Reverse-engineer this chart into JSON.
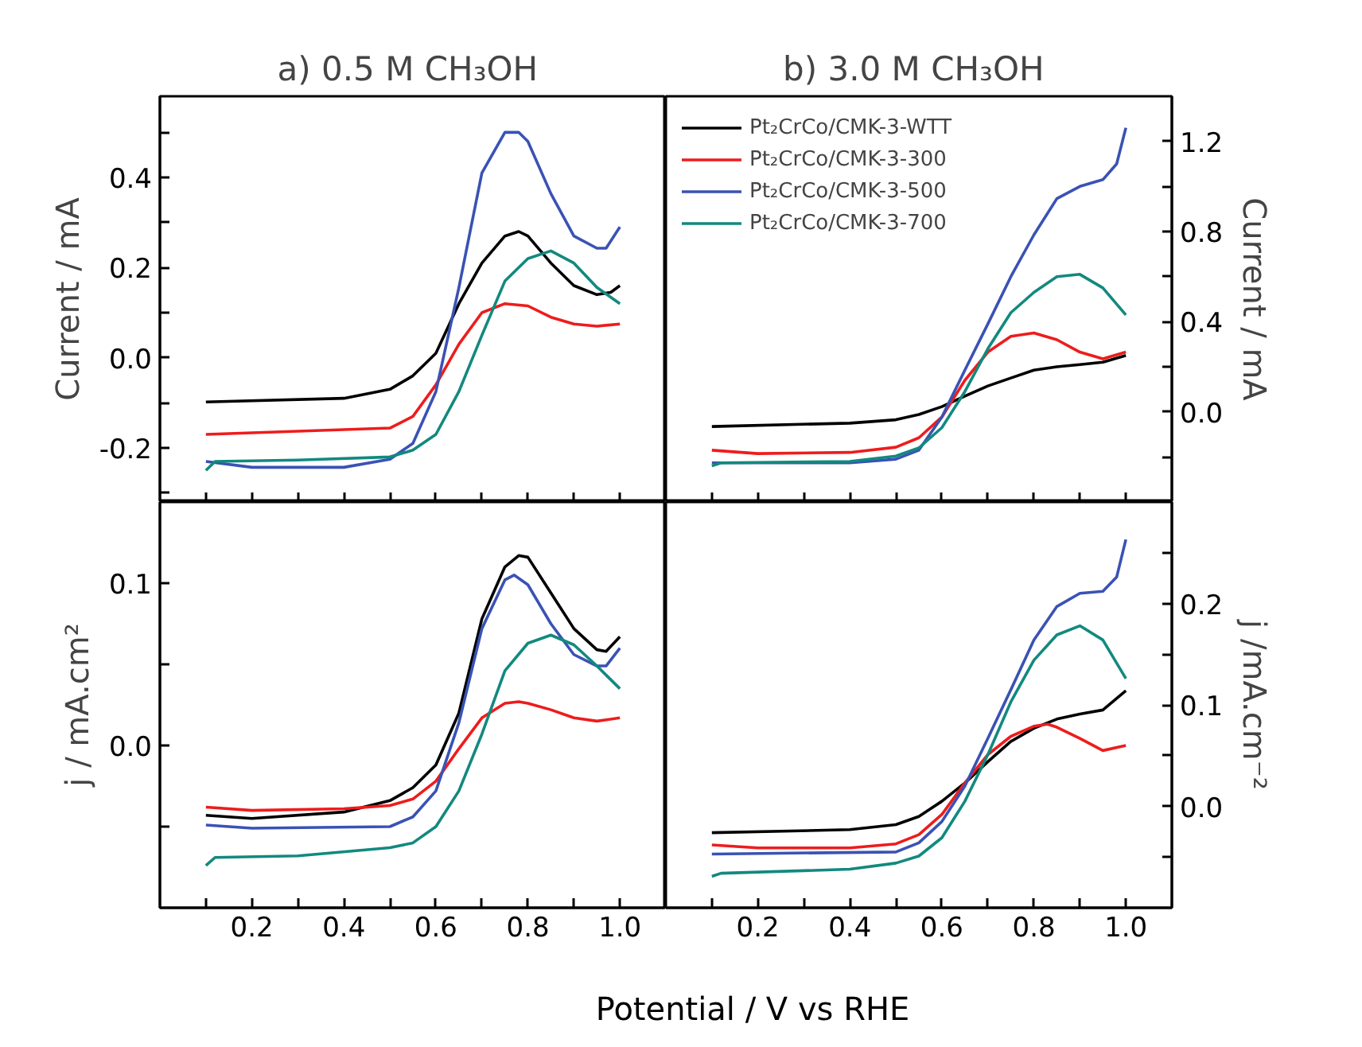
{
  "chart_data": [
    {
      "type": "line",
      "title": "a)  0.5 M CH₃OH",
      "ylabel": "Current / mA",
      "tick_labels": "y",
      "grid": false,
      "xlim": [
        0,
        1.1
      ],
      "xticks": [
        {
          "value": 0.1,
          "label": null
        },
        {
          "value": 0.2,
          "label": null
        },
        {
          "value": 0.3,
          "label": null
        },
        {
          "value": 0.4,
          "label": null
        },
        {
          "value": 0.5,
          "label": null
        },
        {
          "value": 0.6,
          "label": null
        },
        {
          "value": 0.7,
          "label": null
        },
        {
          "value": 0.8,
          "label": null
        },
        {
          "value": 0.9,
          "label": null
        },
        {
          "value": 1.0,
          "label": null
        }
      ],
      "ylim": [
        -0.32,
        0.58
      ],
      "yticks": [
        {
          "value": -0.3,
          "label": null
        },
        -0.2,
        {
          "value": -0.1,
          "label": null
        },
        {
          "value": 0,
          "label": "0.0"
        },
        {
          "value": 0.1,
          "label": null
        },
        0.2,
        {
          "value": 0.3,
          "label": null
        },
        0.4,
        {
          "value": 0.5,
          "label": null
        }
      ],
      "series": [
        {
          "color": "#000000",
          "x": [
            0.1,
            0.4,
            0.5,
            0.55,
            0.6,
            0.65,
            0.7,
            0.75,
            0.78,
            0.8,
            0.85,
            0.9,
            0.95,
            0.98,
            1.0
          ],
          "values": [
            -0.098,
            -0.09,
            -0.07,
            -0.04,
            0.01,
            0.12,
            0.21,
            0.27,
            0.28,
            0.27,
            0.21,
            0.16,
            0.14,
            0.145,
            0.16
          ]
        },
        {
          "color": "#ee1c1c",
          "x": [
            0.1,
            0.5,
            0.55,
            0.6,
            0.65,
            0.7,
            0.75,
            0.8,
            0.85,
            0.9,
            0.95,
            1.0
          ],
          "values": [
            -0.17,
            -0.156,
            -0.13,
            -0.06,
            0.03,
            0.1,
            0.12,
            0.115,
            0.09,
            0.075,
            0.07,
            0.075
          ]
        },
        {
          "color": "#3a52b4",
          "x": [
            0.1,
            0.2,
            0.4,
            0.5,
            0.55,
            0.6,
            0.65,
            0.7,
            0.75,
            0.78,
            0.8,
            0.85,
            0.9,
            0.95,
            0.97,
            1.0
          ],
          "values": [
            -0.23,
            -0.243,
            -0.243,
            -0.225,
            -0.19,
            -0.075,
            0.156,
            0.41,
            0.5,
            0.5,
            0.48,
            0.364,
            0.27,
            0.243,
            0.243,
            0.29
          ]
        },
        {
          "color": "#12897f",
          "x": [
            0.1,
            0.12,
            0.3,
            0.5,
            0.55,
            0.6,
            0.65,
            0.7,
            0.75,
            0.8,
            0.85,
            0.9,
            0.95,
            1.0
          ],
          "values": [
            -0.25,
            -0.23,
            -0.227,
            -0.22,
            -0.205,
            -0.17,
            -0.075,
            0.05,
            0.17,
            0.22,
            0.237,
            0.21,
            0.156,
            0.12
          ]
        }
      ]
    },
    {
      "type": "line",
      "title": "b)  3.0 M CH₃OH",
      "y2label": "Current / mA",
      "tick_labels": "y",
      "grid": false,
      "legend": "top left",
      "xlim": [
        0,
        1.1
      ],
      "xticks": [
        {
          "value": 0.1,
          "label": null
        },
        {
          "value": 0.2,
          "label": null
        },
        {
          "value": 0.3,
          "label": null
        },
        {
          "value": 0.4,
          "label": null
        },
        {
          "value": 0.5,
          "label": null
        },
        {
          "value": 0.6,
          "label": null
        },
        {
          "value": 0.7,
          "label": null
        },
        {
          "value": 0.8,
          "label": null
        },
        {
          "value": 0.9,
          "label": null
        },
        {
          "value": 1.0,
          "label": null
        }
      ],
      "y2lim": [
        -0.4,
        1.4
      ],
      "y2ticks": [
        {
          "value": -0.2,
          "label": null
        },
        {
          "value": 0,
          "label": "0.0"
        },
        {
          "value": 0.2,
          "label": null
        },
        0.4,
        {
          "value": 0.6,
          "label": null
        },
        0.8,
        {
          "value": 1.0,
          "label": null
        },
        1.2
      ],
      "series": [
        {
          "name": "Pt₂CrCo/CMK-3-WTT",
          "axis": "y2",
          "color": "#000000",
          "x": [
            0.1,
            0.4,
            0.5,
            0.55,
            0.6,
            0.65,
            0.7,
            0.75,
            0.8,
            0.85,
            0.9,
            0.95,
            1.0
          ],
          "values": [
            -0.065,
            -0.05,
            -0.035,
            -0.012,
            0.023,
            0.07,
            0.115,
            0.15,
            0.185,
            0.2,
            0.21,
            0.22,
            0.25
          ]
        },
        {
          "name": "Pt₂CrCo/CMK-3-300",
          "axis": "y2",
          "color": "#ee1c1c",
          "x": [
            0.1,
            0.2,
            0.4,
            0.5,
            0.55,
            0.6,
            0.65,
            0.7,
            0.75,
            0.8,
            0.85,
            0.9,
            0.95,
            1.0
          ],
          "values": [
            -0.17,
            -0.185,
            -0.18,
            -0.157,
            -0.115,
            -0.023,
            0.14,
            0.265,
            0.335,
            0.35,
            0.32,
            0.265,
            0.235,
            0.265
          ]
        },
        {
          "name": "Pt₂CrCo/CMK-3-500",
          "axis": "y2",
          "color": "#3a52b4",
          "x": [
            0.1,
            0.4,
            0.5,
            0.55,
            0.6,
            0.65,
            0.7,
            0.75,
            0.8,
            0.85,
            0.9,
            0.95,
            0.98,
            1.0
          ],
          "values": [
            -0.226,
            -0.226,
            -0.21,
            -0.17,
            -0.023,
            0.185,
            0.39,
            0.6,
            0.785,
            0.946,
            1.0,
            1.03,
            1.1,
            1.26
          ]
        },
        {
          "name": "Pt₂CrCo/CMK-3-700",
          "axis": "y2",
          "color": "#12897f",
          "x": [
            0.1,
            0.12,
            0.4,
            0.5,
            0.55,
            0.6,
            0.65,
            0.7,
            0.75,
            0.8,
            0.85,
            0.9,
            0.95,
            1.0
          ],
          "values": [
            -0.24,
            -0.226,
            -0.22,
            -0.196,
            -0.16,
            -0.07,
            0.09,
            0.28,
            0.44,
            0.53,
            0.6,
            0.61,
            0.55,
            0.43
          ]
        }
      ]
    },
    {
      "type": "line",
      "ylabel": "j / mA.cm²",
      "xlabel": "Potential / V vs RHE",
      "grid": false,
      "xlim": [
        0,
        1.1
      ],
      "xticks": [
        {
          "value": 0.1,
          "label": null
        },
        0.2,
        {
          "value": 0.3,
          "label": null
        },
        0.4,
        {
          "value": 0.5,
          "label": null
        },
        0.6,
        {
          "value": 0.7,
          "label": null
        },
        0.8,
        {
          "value": 0.9,
          "label": null
        },
        {
          "value": 1,
          "label": "1.0"
        }
      ],
      "ylim": [
        -0.1,
        0.15
      ],
      "yticks": [
        {
          "value": -0.05,
          "label": null
        },
        {
          "value": 0,
          "label": "0.0"
        },
        {
          "value": 0.05,
          "label": null
        },
        0.1
      ],
      "series": [
        {
          "color": "#000000",
          "x": [
            0.1,
            0.2,
            0.4,
            0.5,
            0.55,
            0.6,
            0.65,
            0.7,
            0.75,
            0.78,
            0.8,
            0.85,
            0.9,
            0.95,
            0.97,
            1.0
          ],
          "values": [
            -0.043,
            -0.045,
            -0.041,
            -0.034,
            -0.026,
            -0.012,
            0.02,
            0.078,
            0.11,
            0.117,
            0.116,
            0.094,
            0.072,
            0.059,
            0.058,
            0.067
          ]
        },
        {
          "color": "#ee1c1c",
          "x": [
            0.1,
            0.2,
            0.4,
            0.5,
            0.55,
            0.6,
            0.65,
            0.7,
            0.75,
            0.78,
            0.8,
            0.85,
            0.9,
            0.95,
            1.0
          ],
          "values": [
            -0.038,
            -0.04,
            -0.039,
            -0.037,
            -0.033,
            -0.022,
            -0.002,
            0.017,
            0.026,
            0.027,
            0.026,
            0.022,
            0.017,
            0.015,
            0.017
          ]
        },
        {
          "color": "#3a52b4",
          "x": [
            0.1,
            0.2,
            0.5,
            0.55,
            0.6,
            0.65,
            0.7,
            0.75,
            0.77,
            0.8,
            0.85,
            0.9,
            0.95,
            0.97,
            1.0
          ],
          "values": [
            -0.049,
            -0.051,
            -0.05,
            -0.044,
            -0.028,
            0.014,
            0.072,
            0.102,
            0.105,
            0.099,
            0.075,
            0.056,
            0.049,
            0.049,
            0.06
          ]
        },
        {
          "color": "#12897f",
          "x": [
            0.1,
            0.12,
            0.3,
            0.5,
            0.55,
            0.6,
            0.65,
            0.7,
            0.75,
            0.8,
            0.85,
            0.9,
            0.95,
            1.0
          ],
          "values": [
            -0.074,
            -0.069,
            -0.068,
            -0.063,
            -0.06,
            -0.05,
            -0.028,
            0.007,
            0.046,
            0.063,
            0.068,
            0.062,
            0.049,
            0.035
          ]
        }
      ]
    },
    {
      "type": "line",
      "y2label": "j /mA.cm⁻²",
      "grid": false,
      "xlim": [
        0,
        1.1
      ],
      "xticks": [
        {
          "value": 0.1,
          "label": null
        },
        0.2,
        {
          "value": 0.3,
          "label": null
        },
        0.4,
        {
          "value": 0.5,
          "label": null
        },
        0.6,
        {
          "value": 0.7,
          "label": null
        },
        0.8,
        {
          "value": 0.9,
          "label": null
        },
        {
          "value": 1,
          "label": "1.0"
        }
      ],
      "y2lim": [
        -0.1,
        0.3
      ],
      "y2ticks": [
        {
          "value": -0.05,
          "label": null
        },
        {
          "value": 0,
          "label": "0.0"
        },
        {
          "value": 0.05,
          "label": null
        },
        0.1,
        {
          "value": 0.15,
          "label": null
        },
        0.2,
        {
          "value": 0.25,
          "label": null
        }
      ],
      "series": [
        {
          "axis": "y2",
          "color": "#000000",
          "x": [
            0.1,
            0.4,
            0.5,
            0.55,
            0.6,
            0.65,
            0.7,
            0.75,
            0.8,
            0.85,
            0.9,
            0.95,
            1.0
          ],
          "values": [
            -0.026,
            -0.023,
            -0.018,
            -0.01,
            0.005,
            0.023,
            0.044,
            0.064,
            0.077,
            0.086,
            0.091,
            0.095,
            0.114
          ]
        },
        {
          "axis": "y2",
          "color": "#ee1c1c",
          "x": [
            0.1,
            0.2,
            0.4,
            0.5,
            0.55,
            0.6,
            0.65,
            0.7,
            0.75,
            0.8,
            0.83,
            0.85,
            0.9,
            0.95,
            1.0
          ],
          "values": [
            -0.038,
            -0.041,
            -0.041,
            -0.037,
            -0.028,
            -0.008,
            0.023,
            0.051,
            0.069,
            0.079,
            0.081,
            0.078,
            0.067,
            0.055,
            0.06
          ]
        },
        {
          "axis": "y2",
          "color": "#3a52b4",
          "x": [
            0.1,
            0.5,
            0.55,
            0.6,
            0.65,
            0.7,
            0.75,
            0.8,
            0.85,
            0.9,
            0.95,
            0.98,
            1.0
          ],
          "values": [
            -0.047,
            -0.045,
            -0.036,
            -0.015,
            0.02,
            0.067,
            0.115,
            0.164,
            0.197,
            0.21,
            0.212,
            0.226,
            0.263
          ]
        },
        {
          "axis": "y2",
          "color": "#12897f",
          "x": [
            0.1,
            0.12,
            0.4,
            0.5,
            0.55,
            0.6,
            0.65,
            0.7,
            0.75,
            0.8,
            0.85,
            0.9,
            0.95,
            1.0
          ],
          "values": [
            -0.069,
            -0.066,
            -0.062,
            -0.056,
            -0.049,
            -0.031,
            0.005,
            0.051,
            0.103,
            0.144,
            0.169,
            0.178,
            0.164,
            0.126
          ]
        }
      ]
    }
  ]
}
